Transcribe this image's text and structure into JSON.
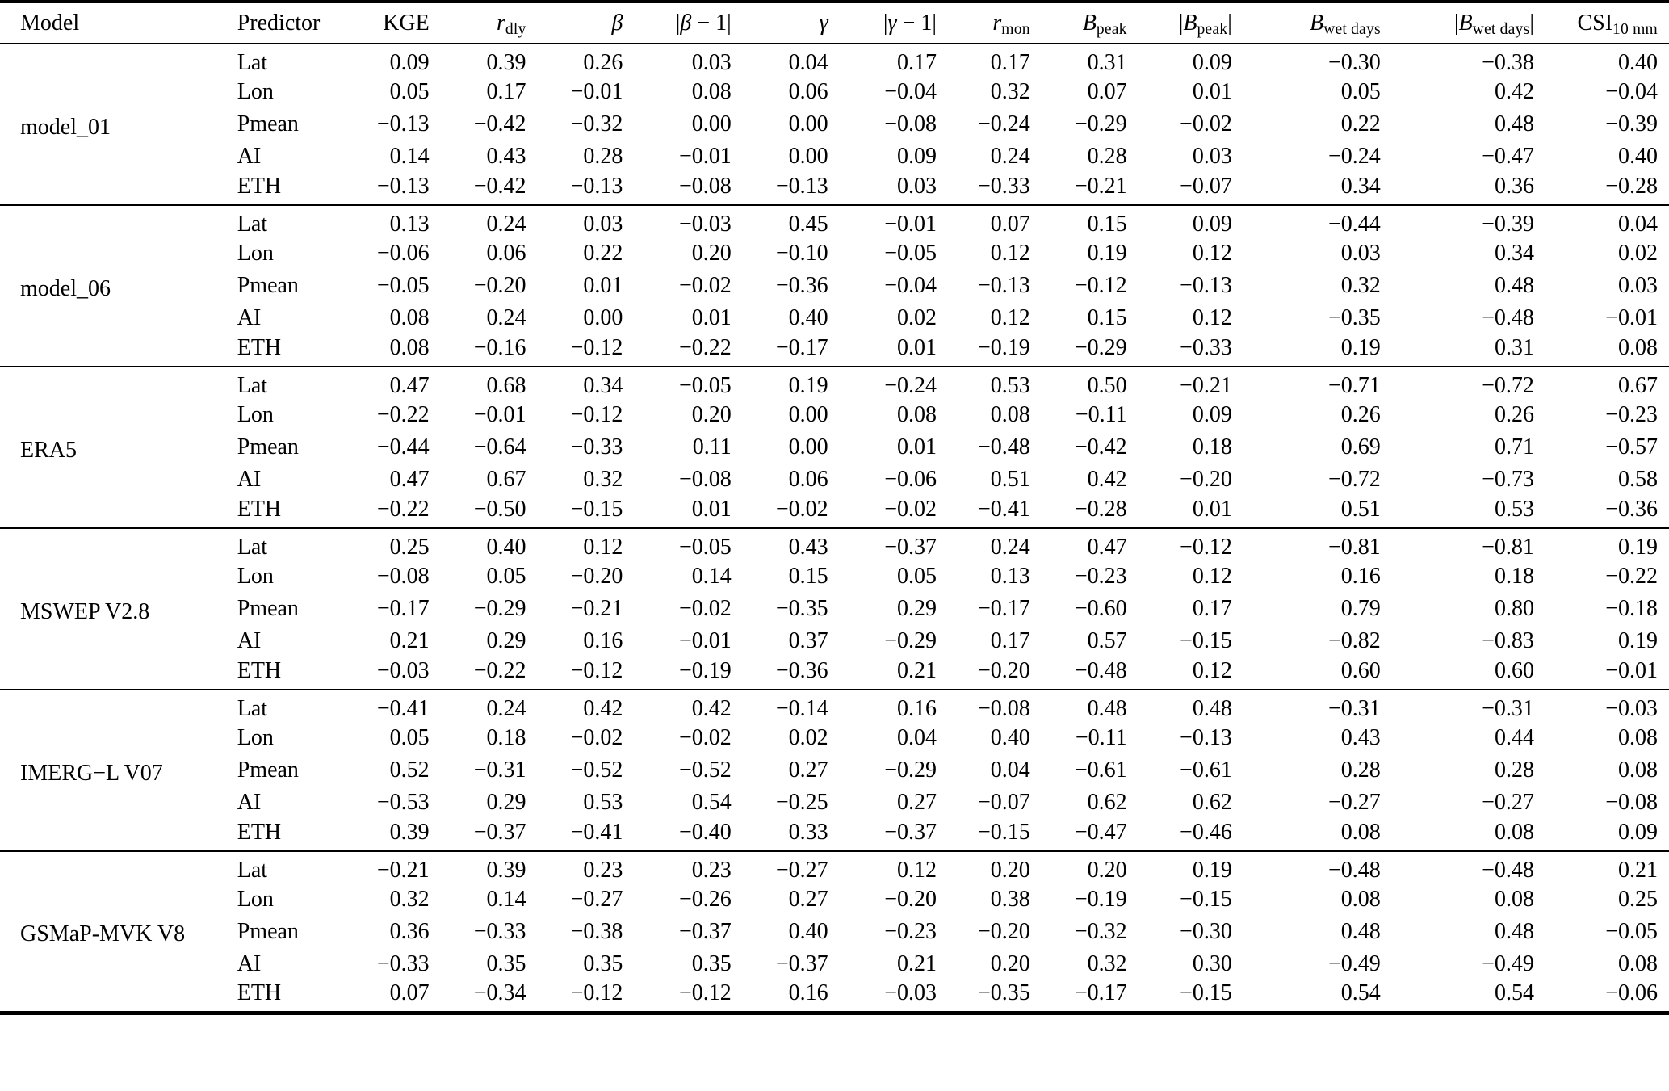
{
  "colors": {
    "text": "#000000",
    "background": "#ffffff",
    "rule": "#000000"
  },
  "table": {
    "columns": [
      {
        "key": "model",
        "label": "Model",
        "align": "left",
        "italic": false
      },
      {
        "key": "predictor",
        "label": "Predictor",
        "align": "left",
        "italic": false
      },
      {
        "key": "kge",
        "label": "KGE",
        "align": "right",
        "italic": false
      },
      {
        "key": "r_dly",
        "label": "r",
        "sub": "dly",
        "align": "right",
        "italic": true
      },
      {
        "key": "beta",
        "label": "β",
        "align": "right",
        "italic": true
      },
      {
        "key": "abs_beta_minus_1",
        "pre": "|",
        "label": "β",
        "post": " − 1|",
        "align": "right",
        "italic": true
      },
      {
        "key": "gamma",
        "label": "γ",
        "align": "right",
        "italic": true
      },
      {
        "key": "abs_gamma_minus_1",
        "pre": "|",
        "label": "γ",
        "post": " − 1|",
        "align": "right",
        "italic": true
      },
      {
        "key": "r_mon",
        "label": "r",
        "sub": "mon",
        "align": "right",
        "italic": true
      },
      {
        "key": "b_peak",
        "label": "B",
        "sub": "peak",
        "align": "right",
        "italic": true
      },
      {
        "key": "abs_b_peak",
        "pre": "|",
        "label": "B",
        "sub": "peak",
        "post": "|",
        "align": "right",
        "italic": true
      },
      {
        "key": "b_wet_days",
        "label": "B",
        "sub": "wet days",
        "align": "right",
        "italic": true
      },
      {
        "key": "abs_b_wet_days",
        "pre": "|",
        "label": "B",
        "sub": "wet days",
        "post": "|",
        "align": "right",
        "italic": true
      },
      {
        "key": "csi_10mm",
        "label": "CSI",
        "sub": "10 mm",
        "align": "right",
        "italic": false
      }
    ],
    "blocks": [
      {
        "model": "model_01",
        "rows": [
          {
            "predictor": "Lat",
            "values": [
              "0.09",
              "0.39",
              "0.26",
              "0.03",
              "0.04",
              "0.17",
              "0.17",
              "0.31",
              "0.09",
              "−0.30",
              "−0.38",
              "0.40"
            ]
          },
          {
            "predictor": "Lon",
            "values": [
              "0.05",
              "0.17",
              "−0.01",
              "0.08",
              "0.06",
              "−0.04",
              "0.32",
              "0.07",
              "0.01",
              "0.05",
              "0.42",
              "−0.04"
            ]
          },
          {
            "predictor": "Pmean",
            "values": [
              "−0.13",
              "−0.42",
              "−0.32",
              "0.00",
              "0.00",
              "−0.08",
              "−0.24",
              "−0.29",
              "−0.02",
              "0.22",
              "0.48",
              "−0.39"
            ]
          },
          {
            "predictor": "AI",
            "values": [
              "0.14",
              "0.43",
              "0.28",
              "−0.01",
              "0.00",
              "0.09",
              "0.24",
              "0.28",
              "0.03",
              "−0.24",
              "−0.47",
              "0.40"
            ]
          },
          {
            "predictor": "ETH",
            "values": [
              "−0.13",
              "−0.42",
              "−0.13",
              "−0.08",
              "−0.13",
              "0.03",
              "−0.33",
              "−0.21",
              "−0.07",
              "0.34",
              "0.36",
              "−0.28"
            ]
          }
        ]
      },
      {
        "model": "model_06",
        "rows": [
          {
            "predictor": "Lat",
            "values": [
              "0.13",
              "0.24",
              "0.03",
              "−0.03",
              "0.45",
              "−0.01",
              "0.07",
              "0.15",
              "0.09",
              "−0.44",
              "−0.39",
              "0.04"
            ]
          },
          {
            "predictor": "Lon",
            "values": [
              "−0.06",
              "0.06",
              "0.22",
              "0.20",
              "−0.10",
              "−0.05",
              "0.12",
              "0.19",
              "0.12",
              "0.03",
              "0.34",
              "0.02"
            ]
          },
          {
            "predictor": "Pmean",
            "values": [
              "−0.05",
              "−0.20",
              "0.01",
              "−0.02",
              "−0.36",
              "−0.04",
              "−0.13",
              "−0.12",
              "−0.13",
              "0.32",
              "0.48",
              "0.03"
            ]
          },
          {
            "predictor": "AI",
            "values": [
              "0.08",
              "0.24",
              "0.00",
              "0.01",
              "0.40",
              "0.02",
              "0.12",
              "0.15",
              "0.12",
              "−0.35",
              "−0.48",
              "−0.01"
            ]
          },
          {
            "predictor": "ETH",
            "values": [
              "0.08",
              "−0.16",
              "−0.12",
              "−0.22",
              "−0.17",
              "0.01",
              "−0.19",
              "−0.29",
              "−0.33",
              "0.19",
              "0.31",
              "0.08"
            ]
          }
        ]
      },
      {
        "model": "ERA5",
        "rows": [
          {
            "predictor": "Lat",
            "values": [
              "0.47",
              "0.68",
              "0.34",
              "−0.05",
              "0.19",
              "−0.24",
              "0.53",
              "0.50",
              "−0.21",
              "−0.71",
              "−0.72",
              "0.67"
            ]
          },
          {
            "predictor": "Lon",
            "values": [
              "−0.22",
              "−0.01",
              "−0.12",
              "0.20",
              "0.00",
              "0.08",
              "0.08",
              "−0.11",
              "0.09",
              "0.26",
              "0.26",
              "−0.23"
            ]
          },
          {
            "predictor": "Pmean",
            "values": [
              "−0.44",
              "−0.64",
              "−0.33",
              "0.11",
              "0.00",
              "0.01",
              "−0.48",
              "−0.42",
              "0.18",
              "0.69",
              "0.71",
              "−0.57"
            ]
          },
          {
            "predictor": "AI",
            "values": [
              "0.47",
              "0.67",
              "0.32",
              "−0.08",
              "0.06",
              "−0.06",
              "0.51",
              "0.42",
              "−0.20",
              "−0.72",
              "−0.73",
              "0.58"
            ]
          },
          {
            "predictor": "ETH",
            "values": [
              "−0.22",
              "−0.50",
              "−0.15",
              "0.01",
              "−0.02",
              "−0.02",
              "−0.41",
              "−0.28",
              "0.01",
              "0.51",
              "0.53",
              "−0.36"
            ]
          }
        ]
      },
      {
        "model": "MSWEP V2.8",
        "rows": [
          {
            "predictor": "Lat",
            "values": [
              "0.25",
              "0.40",
              "0.12",
              "−0.05",
              "0.43",
              "−0.37",
              "0.24",
              "0.47",
              "−0.12",
              "−0.81",
              "−0.81",
              "0.19"
            ]
          },
          {
            "predictor": "Lon",
            "values": [
              "−0.08",
              "0.05",
              "−0.20",
              "0.14",
              "0.15",
              "0.05",
              "0.13",
              "−0.23",
              "0.12",
              "0.16",
              "0.18",
              "−0.22"
            ]
          },
          {
            "predictor": "Pmean",
            "values": [
              "−0.17",
              "−0.29",
              "−0.21",
              "−0.02",
              "−0.35",
              "0.29",
              "−0.17",
              "−0.60",
              "0.17",
              "0.79",
              "0.80",
              "−0.18"
            ]
          },
          {
            "predictor": "AI",
            "values": [
              "0.21",
              "0.29",
              "0.16",
              "−0.01",
              "0.37",
              "−0.29",
              "0.17",
              "0.57",
              "−0.15",
              "−0.82",
              "−0.83",
              "0.19"
            ]
          },
          {
            "predictor": "ETH",
            "values": [
              "−0.03",
              "−0.22",
              "−0.12",
              "−0.19",
              "−0.36",
              "0.21",
              "−0.20",
              "−0.48",
              "0.12",
              "0.60",
              "0.60",
              "−0.01"
            ]
          }
        ]
      },
      {
        "model": "IMERG−L V07",
        "rows": [
          {
            "predictor": "Lat",
            "values": [
              "−0.41",
              "0.24",
              "0.42",
              "0.42",
              "−0.14",
              "0.16",
              "−0.08",
              "0.48",
              "0.48",
              "−0.31",
              "−0.31",
              "−0.03"
            ]
          },
          {
            "predictor": "Lon",
            "values": [
              "0.05",
              "0.18",
              "−0.02",
              "−0.02",
              "0.02",
              "0.04",
              "0.40",
              "−0.11",
              "−0.13",
              "0.43",
              "0.44",
              "0.08"
            ]
          },
          {
            "predictor": "Pmean",
            "values": [
              "0.52",
              "−0.31",
              "−0.52",
              "−0.52",
              "0.27",
              "−0.29",
              "0.04",
              "−0.61",
              "−0.61",
              "0.28",
              "0.28",
              "0.08"
            ]
          },
          {
            "predictor": "AI",
            "values": [
              "−0.53",
              "0.29",
              "0.53",
              "0.54",
              "−0.25",
              "0.27",
              "−0.07",
              "0.62",
              "0.62",
              "−0.27",
              "−0.27",
              "−0.08"
            ]
          },
          {
            "predictor": "ETH",
            "values": [
              "0.39",
              "−0.37",
              "−0.41",
              "−0.40",
              "0.33",
              "−0.37",
              "−0.15",
              "−0.47",
              "−0.46",
              "0.08",
              "0.08",
              "0.09"
            ]
          }
        ]
      },
      {
        "model": "GSMaP-MVK V8",
        "rows": [
          {
            "predictor": "Lat",
            "values": [
              "−0.21",
              "0.39",
              "0.23",
              "0.23",
              "−0.27",
              "0.12",
              "0.20",
              "0.20",
              "0.19",
              "−0.48",
              "−0.48",
              "0.21"
            ]
          },
          {
            "predictor": "Lon",
            "values": [
              "0.32",
              "0.14",
              "−0.27",
              "−0.26",
              "0.27",
              "−0.20",
              "0.38",
              "−0.19",
              "−0.15",
              "0.08",
              "0.08",
              "0.25"
            ]
          },
          {
            "predictor": "Pmean",
            "values": [
              "0.36",
              "−0.33",
              "−0.38",
              "−0.37",
              "0.40",
              "−0.23",
              "−0.20",
              "−0.32",
              "−0.30",
              "0.48",
              "0.48",
              "−0.05"
            ]
          },
          {
            "predictor": "AI",
            "values": [
              "−0.33",
              "0.35",
              "0.35",
              "0.35",
              "−0.37",
              "0.21",
              "0.20",
              "0.32",
              "0.30",
              "−0.49",
              "−0.49",
              "0.08"
            ]
          },
          {
            "predictor": "ETH",
            "values": [
              "0.07",
              "−0.34",
              "−0.12",
              "−0.12",
              "0.16",
              "−0.03",
              "−0.35",
              "−0.17",
              "−0.15",
              "0.54",
              "0.54",
              "−0.06"
            ]
          }
        ]
      }
    ]
  }
}
